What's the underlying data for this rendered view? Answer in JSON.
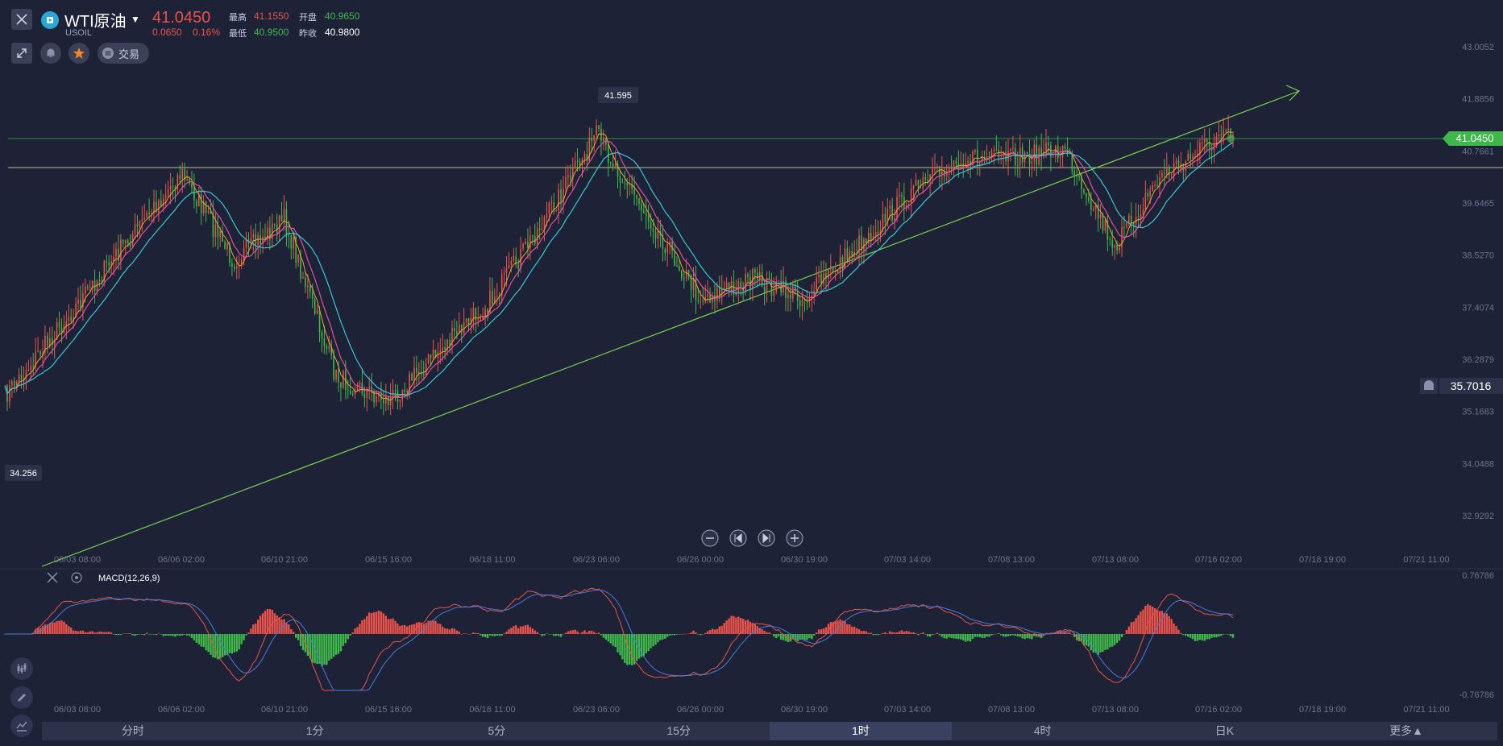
{
  "header": {
    "title": "WTI原油",
    "symbol": "USOIL",
    "price": "41.0450",
    "change": "0.0650",
    "change_pct": "0.16%",
    "stats": [
      {
        "label": "最高",
        "value": "41.1550",
        "color": "#e9524a"
      },
      {
        "label": "开盘",
        "value": "40.9650",
        "color": "#3fb84a"
      },
      {
        "label": "最低",
        "value": "40.9500",
        "color": "#3fb84a"
      },
      {
        "label": "昨收",
        "value": "40.9800",
        "color": "#ffffff"
      }
    ],
    "trade_label": "交易"
  },
  "colors": {
    "background": "#1d2236",
    "up": "#e9524a",
    "down": "#3fb84a",
    "ma_short": "#e04fa6",
    "ma_long": "#38c7d6",
    "trendline": "#79d24a",
    "hline": "#e6e6a8",
    "price_tag": "#3fb84a",
    "macd_dif": "#e9524a",
    "macd_dea": "#4b7bd9"
  },
  "chart_data": [
    {
      "type": "line",
      "title": "",
      "timeframe": "1时",
      "x_labels": [
        "06/03 08:00",
        "06/06 02:00",
        "06/10 21:00",
        "06/15 16:00",
        "06/18 11:00",
        "06/23 06:00",
        "06/26 00:00",
        "06/30 19:00",
        "07/03 14:00",
        "07/08 13:00",
        "07/13 08:00",
        "07/16 02:00",
        "07/18 19:00",
        "07/21 11:00"
      ],
      "y_ticks": [
        "43.0052",
        "41.8856",
        "40.7661",
        "39.6465",
        "38.5270",
        "37.4074",
        "36.2879",
        "35.1683",
        "34.0488",
        "32.9292"
      ],
      "ylim": [
        32.9292,
        43.0052
      ],
      "series": [
        {
          "x": [
            "06/03 08:00",
            "06/06 02:00",
            "06/08 12:00",
            "06/10 21:00",
            "06/13 06:00",
            "06/15 16:00",
            "06/18 11:00",
            "06/21 00:00",
            "06/23 06:00",
            "06/26 00:00",
            "06/28 10:00",
            "06/30 19:00",
            "07/03 14:00",
            "07/06 02:00",
            "07/08 13:00",
            "07/11 00:00",
            "07/13 08:00",
            "07/14 12:00",
            "07/16 02:00"
          ],
          "values": [
            35.5,
            40.3,
            38.4,
            39.3,
            35.9,
            35.4,
            37.6,
            39.4,
            41.1,
            37.6,
            38.0,
            37.6,
            39.8,
            40.6,
            40.6,
            40.8,
            38.7,
            40.2,
            41.05
          ]
        }
      ],
      "annotations": {
        "high_label": "41.595",
        "low_label": "34.256",
        "last_price": "41.0450",
        "alert_price": "35.7016"
      }
    },
    {
      "type": "bar",
      "title": "MACD(12,26,9)",
      "y_ticks": [
        "0.76786",
        "-0.76786"
      ],
      "ylim": [
        -0.76786,
        0.76786
      ],
      "x_labels": [
        "06/03 08:00",
        "06/06 02:00",
        "06/10 21:00",
        "06/15 16:00",
        "06/18 11:00",
        "06/23 06:00",
        "06/26 00:00",
        "06/30 19:00",
        "07/03 14:00",
        "07/08 13:00",
        "07/13 08:00",
        "07/16 02:00",
        "07/18 19:00",
        "07/21 11:00"
      ]
    }
  ],
  "bottom_tabs": [
    "分时",
    "1分",
    "5分",
    "15分",
    "1时",
    "4时",
    "日K",
    "更多▲"
  ],
  "active_tab": "1时",
  "icons": [
    "close-icon",
    "collapse-icon",
    "bell-icon",
    "star-icon",
    "trade-icon",
    "zoom-out-icon",
    "skip-back-icon",
    "skip-forward-icon",
    "zoom-in-icon",
    "candle-icon",
    "pencil-icon",
    "indicator-icon",
    "settings-icon"
  ]
}
